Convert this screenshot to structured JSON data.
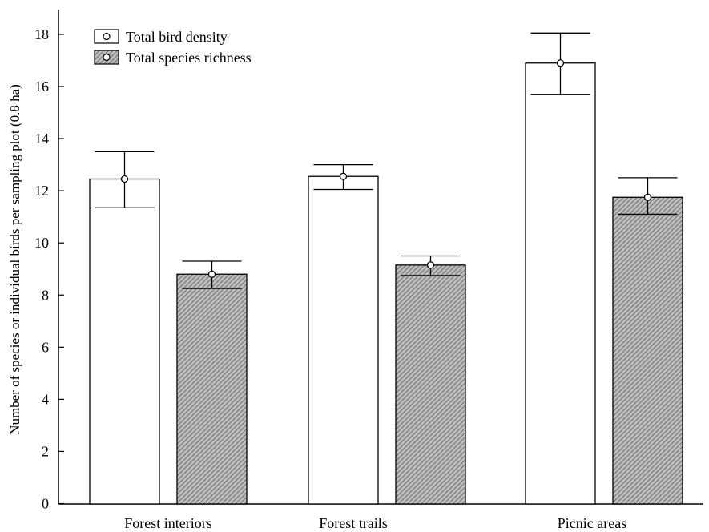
{
  "chart_data": {
    "type": "bar",
    "categories": [
      "Forest interiors",
      "Forest trails",
      "Picnic areas"
    ],
    "series": [
      {
        "name": "Total bird density",
        "fill": "#ffffff",
        "pattern": "none",
        "values": [
          12.45,
          12.55,
          16.9
        ],
        "error_upper": [
          13.5,
          13.0,
          18.05
        ],
        "error_lower": [
          11.35,
          12.05,
          15.7
        ]
      },
      {
        "name": "Total species richness",
        "fill": "#b0b0b0",
        "pattern": "diagonal-hatch",
        "values": [
          8.8,
          9.15,
          11.75
        ],
        "error_upper": [
          9.3,
          9.5,
          12.5
        ],
        "error_lower": [
          8.25,
          8.75,
          11.1
        ]
      }
    ],
    "title": "",
    "xlabel": "",
    "ylabel": "Number of species or individual birds per sampling plot (0.8 ha)",
    "ylim": [
      0,
      19
    ],
    "yticks": [
      0,
      2,
      4,
      6,
      8,
      10,
      12,
      14,
      16,
      18
    ],
    "grid": false,
    "legend": "top-left",
    "axis_color": "#000000"
  }
}
